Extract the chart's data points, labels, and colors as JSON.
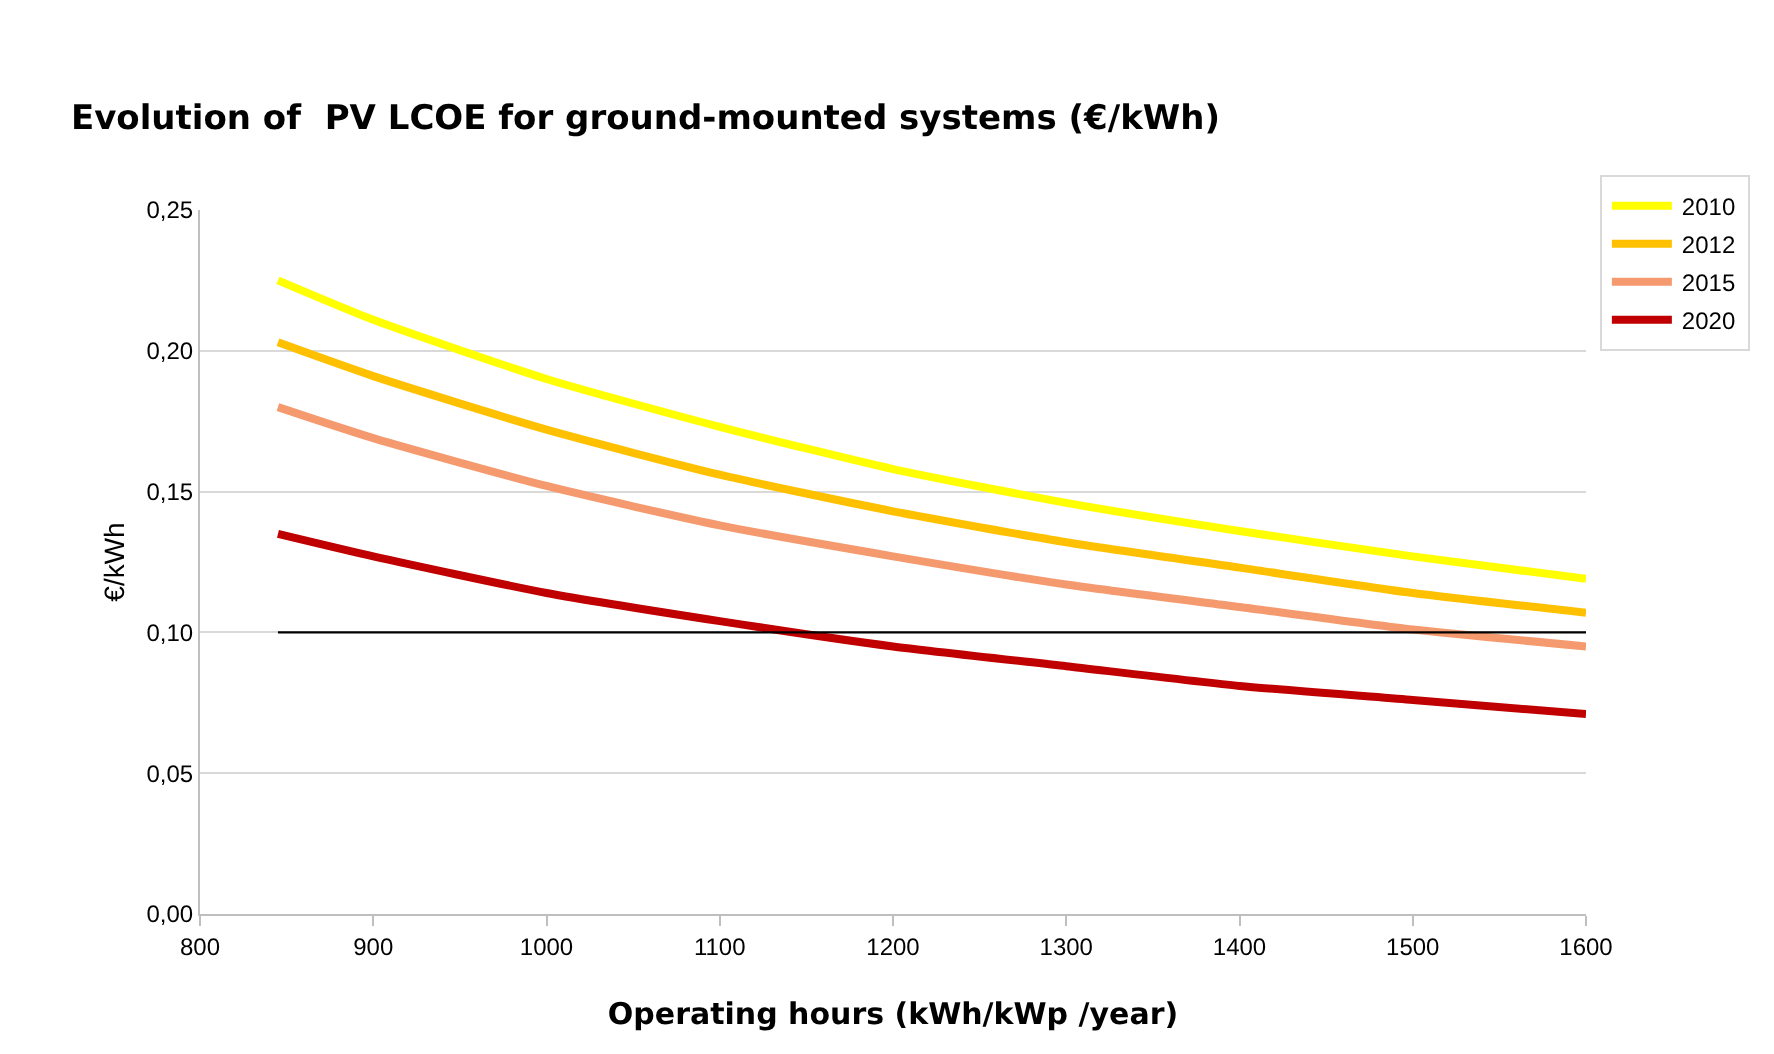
{
  "chart_data": {
    "type": "line",
    "title": "Evolution of  PV LCOE for ground-mounted systems (€/kWh)",
    "xlabel": "Operating hours (kWh/kWp /year)",
    "ylabel": "€/kWh",
    "x": [
      845,
      900,
      1000,
      1100,
      1200,
      1300,
      1400,
      1500,
      1600
    ],
    "series": [
      {
        "name": "2010",
        "color": "#ffff00",
        "values": [
          0.225,
          0.211,
          0.19,
          0.173,
          0.158,
          0.146,
          0.136,
          0.127,
          0.119
        ]
      },
      {
        "name": "2012",
        "color": "#ffc000",
        "values": [
          0.203,
          0.191,
          0.172,
          0.156,
          0.143,
          0.132,
          0.123,
          0.114,
          0.107
        ]
      },
      {
        "name": "2015",
        "color": "#f59a6e",
        "values": [
          0.18,
          0.169,
          0.152,
          0.138,
          0.127,
          0.117,
          0.109,
          0.101,
          0.095
        ]
      },
      {
        "name": "2020",
        "color": "#c00000",
        "values": [
          0.135,
          0.127,
          0.114,
          0.104,
          0.095,
          0.088,
          0.081,
          0.076,
          0.071
        ]
      }
    ],
    "xlim": [
      800,
      1600
    ],
    "xticks": [
      800,
      900,
      1000,
      1100,
      1200,
      1300,
      1400,
      1500,
      1600
    ],
    "ylim": [
      0,
      0.25
    ],
    "yticks": [
      {
        "value": 0,
        "label": "0,00"
      },
      {
        "value": 0.05,
        "label": "0,05"
      },
      {
        "value": 0.1,
        "label": "0,10"
      },
      {
        "value": 0.15,
        "label": "0,15"
      },
      {
        "value": 0.2,
        "label": "0,20"
      },
      {
        "value": 0.25,
        "label": "0,25"
      }
    ],
    "ref_lines": [
      {
        "axis": "y",
        "value": 0.1,
        "color": "#000000"
      }
    ],
    "grid": "y",
    "legend": "top right",
    "marker": "none",
    "line_style": "solid"
  }
}
